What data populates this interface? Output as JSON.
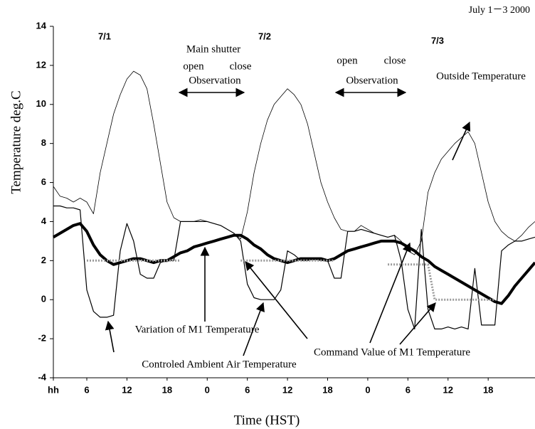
{
  "chart_data": {
    "type": "line",
    "title": "July 1－3 2000",
    "y_label": "Temperature  deg.C",
    "x_label": "Time (HST)",
    "x": [
      1,
      2,
      3,
      4,
      5,
      6,
      7,
      8,
      9,
      10,
      11,
      12,
      13,
      14,
      15,
      16,
      17,
      18,
      19,
      20,
      21,
      22,
      23,
      24,
      25,
      26,
      27,
      28,
      29,
      30,
      31,
      32,
      33,
      34,
      35,
      36,
      37,
      38,
      39,
      40,
      41,
      42,
      43,
      44,
      45,
      46,
      47,
      48,
      49,
      50,
      51,
      52,
      53,
      54,
      55,
      56,
      57,
      58,
      59,
      60,
      61,
      62,
      63,
      64,
      65,
      66,
      67,
      68,
      69,
      70,
      71,
      72,
      73
    ],
    "xlim": [
      1,
      73
    ],
    "xticks": [
      {
        "value": 1,
        "label": "hh"
      },
      6,
      12,
      18,
      {
        "value": 24,
        "label": "0"
      },
      {
        "value": 30,
        "label": "6"
      },
      {
        "value": 36,
        "label": "12"
      },
      {
        "value": 42,
        "label": "18"
      },
      {
        "value": 48,
        "label": "0"
      },
      {
        "value": 54,
        "label": "6"
      },
      {
        "value": 60,
        "label": "12"
      },
      {
        "value": 66,
        "label": "18"
      }
    ],
    "ylim": [
      -4,
      14
    ],
    "yticks": [
      -4,
      -2,
      0,
      2,
      4,
      6,
      8,
      10,
      12,
      14
    ],
    "series": [
      {
        "color": "#000000",
        "width": 0.8,
        "values": [
          5.8,
          5.3,
          5.2,
          5.0,
          5.2,
          5.0,
          4.4,
          6.5,
          8.0,
          9.5,
          10.5,
          11.3,
          11.7,
          11.5,
          10.8,
          9.0,
          7.0,
          5.0,
          4.2,
          4.0,
          4.0,
          4.0,
          4.1,
          4.0,
          3.9,
          3.8,
          3.6,
          3.4,
          3.1,
          4.5,
          6.5,
          8.0,
          9.2,
          10.0,
          10.4,
          10.8,
          10.5,
          10.0,
          9.0,
          7.5,
          6.0,
          5.0,
          4.2,
          3.6,
          3.5,
          3.5,
          3.8,
          3.6,
          3.4,
          3.3,
          3.2,
          3.3,
          3.0,
          2.5,
          2.3,
          3.0,
          5.5,
          6.5,
          7.2,
          7.6,
          8.0,
          8.3,
          8.6,
          8.0,
          6.5,
          5.0,
          4.0,
          3.5,
          3.2,
          3.0,
          3.3,
          3.7,
          4.0
        ]
      },
      {
        "color": "#000000",
        "width": 1.2,
        "values": [
          4.8,
          4.8,
          4.7,
          4.7,
          4.6,
          0.5,
          -0.6,
          -0.9,
          -0.9,
          -0.8,
          2.5,
          3.9,
          3.0,
          1.3,
          1.1,
          1.1,
          1.9,
          2.0,
          2.0,
          4.0,
          4.0,
          4.0,
          4.0,
          4.0,
          3.9,
          3.8,
          3.6,
          3.4,
          3.0,
          0.8,
          0.1,
          0.0,
          0.0,
          0.0,
          0.5,
          2.5,
          2.3,
          2.0,
          2.0,
          2.1,
          2.0,
          2.0,
          1.1,
          1.1,
          3.5,
          3.5,
          3.6,
          3.5,
          3.4,
          3.3,
          3.2,
          3.3,
          2.0,
          -0.5,
          -1.5,
          3.6,
          -0.5,
          -1.5,
          -1.5,
          -1.4,
          -1.5,
          -1.4,
          -1.5,
          1.6,
          -1.3,
          -1.3,
          -1.3,
          2.5,
          2.8,
          3.0,
          3.0,
          3.1,
          3.2
        ]
      },
      {
        "color": "#000000",
        "width": 4,
        "values": [
          3.2,
          3.4,
          3.6,
          3.8,
          3.9,
          3.5,
          2.8,
          2.3,
          2.0,
          1.8,
          1.9,
          2.0,
          2.1,
          2.1,
          2.0,
          1.9,
          2.0,
          2.0,
          2.2,
          2.4,
          2.5,
          2.7,
          2.8,
          2.9,
          3.0,
          3.1,
          3.2,
          3.3,
          3.3,
          3.1,
          2.8,
          2.6,
          2.3,
          2.1,
          2.0,
          1.9,
          2.0,
          2.1,
          2.1,
          2.1,
          2.1,
          2.0,
          2.1,
          2.3,
          2.5,
          2.6,
          2.7,
          2.8,
          2.9,
          3.0,
          3.0,
          3.0,
          2.9,
          2.7,
          2.5,
          2.2,
          2.0,
          1.7,
          1.5,
          1.3,
          1.1,
          0.9,
          0.7,
          0.5,
          0.3,
          0.1,
          -0.1,
          -0.2,
          0.2,
          0.7,
          1.1,
          1.5,
          1.9
        ]
      },
      {
        "color": "#999999",
        "width": 3,
        "dashed": true,
        "values": [
          null,
          null,
          null,
          null,
          null,
          2.0,
          2.0,
          2.0,
          2.0,
          2.0,
          2.0,
          2.0,
          2.0,
          2.0,
          2.0,
          2.0,
          2.0,
          2.0,
          2.0,
          2.0,
          null,
          null,
          null,
          null,
          null,
          null,
          null,
          null,
          2.0,
          2.0,
          2.0,
          2.0,
          2.0,
          2.0,
          2.0,
          2.0,
          2.0,
          2.0,
          2.0,
          2.0,
          2.0,
          2.0,
          2.0,
          null,
          null,
          null,
          null,
          null,
          null,
          null,
          1.8,
          1.8,
          1.8,
          1.8,
          1.8,
          1.8,
          1.8,
          0.0,
          0.0,
          0.0,
          0.0,
          0.0,
          0.0,
          0.0,
          0.0,
          0.0,
          0.0,
          null,
          null,
          null,
          null,
          null,
          null
        ]
      }
    ],
    "annotations": [
      "7/1",
      "7/2",
      "7/3",
      "Main shutter",
      "open",
      "close",
      "Observation",
      "open",
      "close",
      "Observation",
      "Outside Temperature",
      "Variation  of M1 Temperature",
      "Controled Ambient Air Temperature",
      "Command Value of M1 Temperature"
    ]
  }
}
